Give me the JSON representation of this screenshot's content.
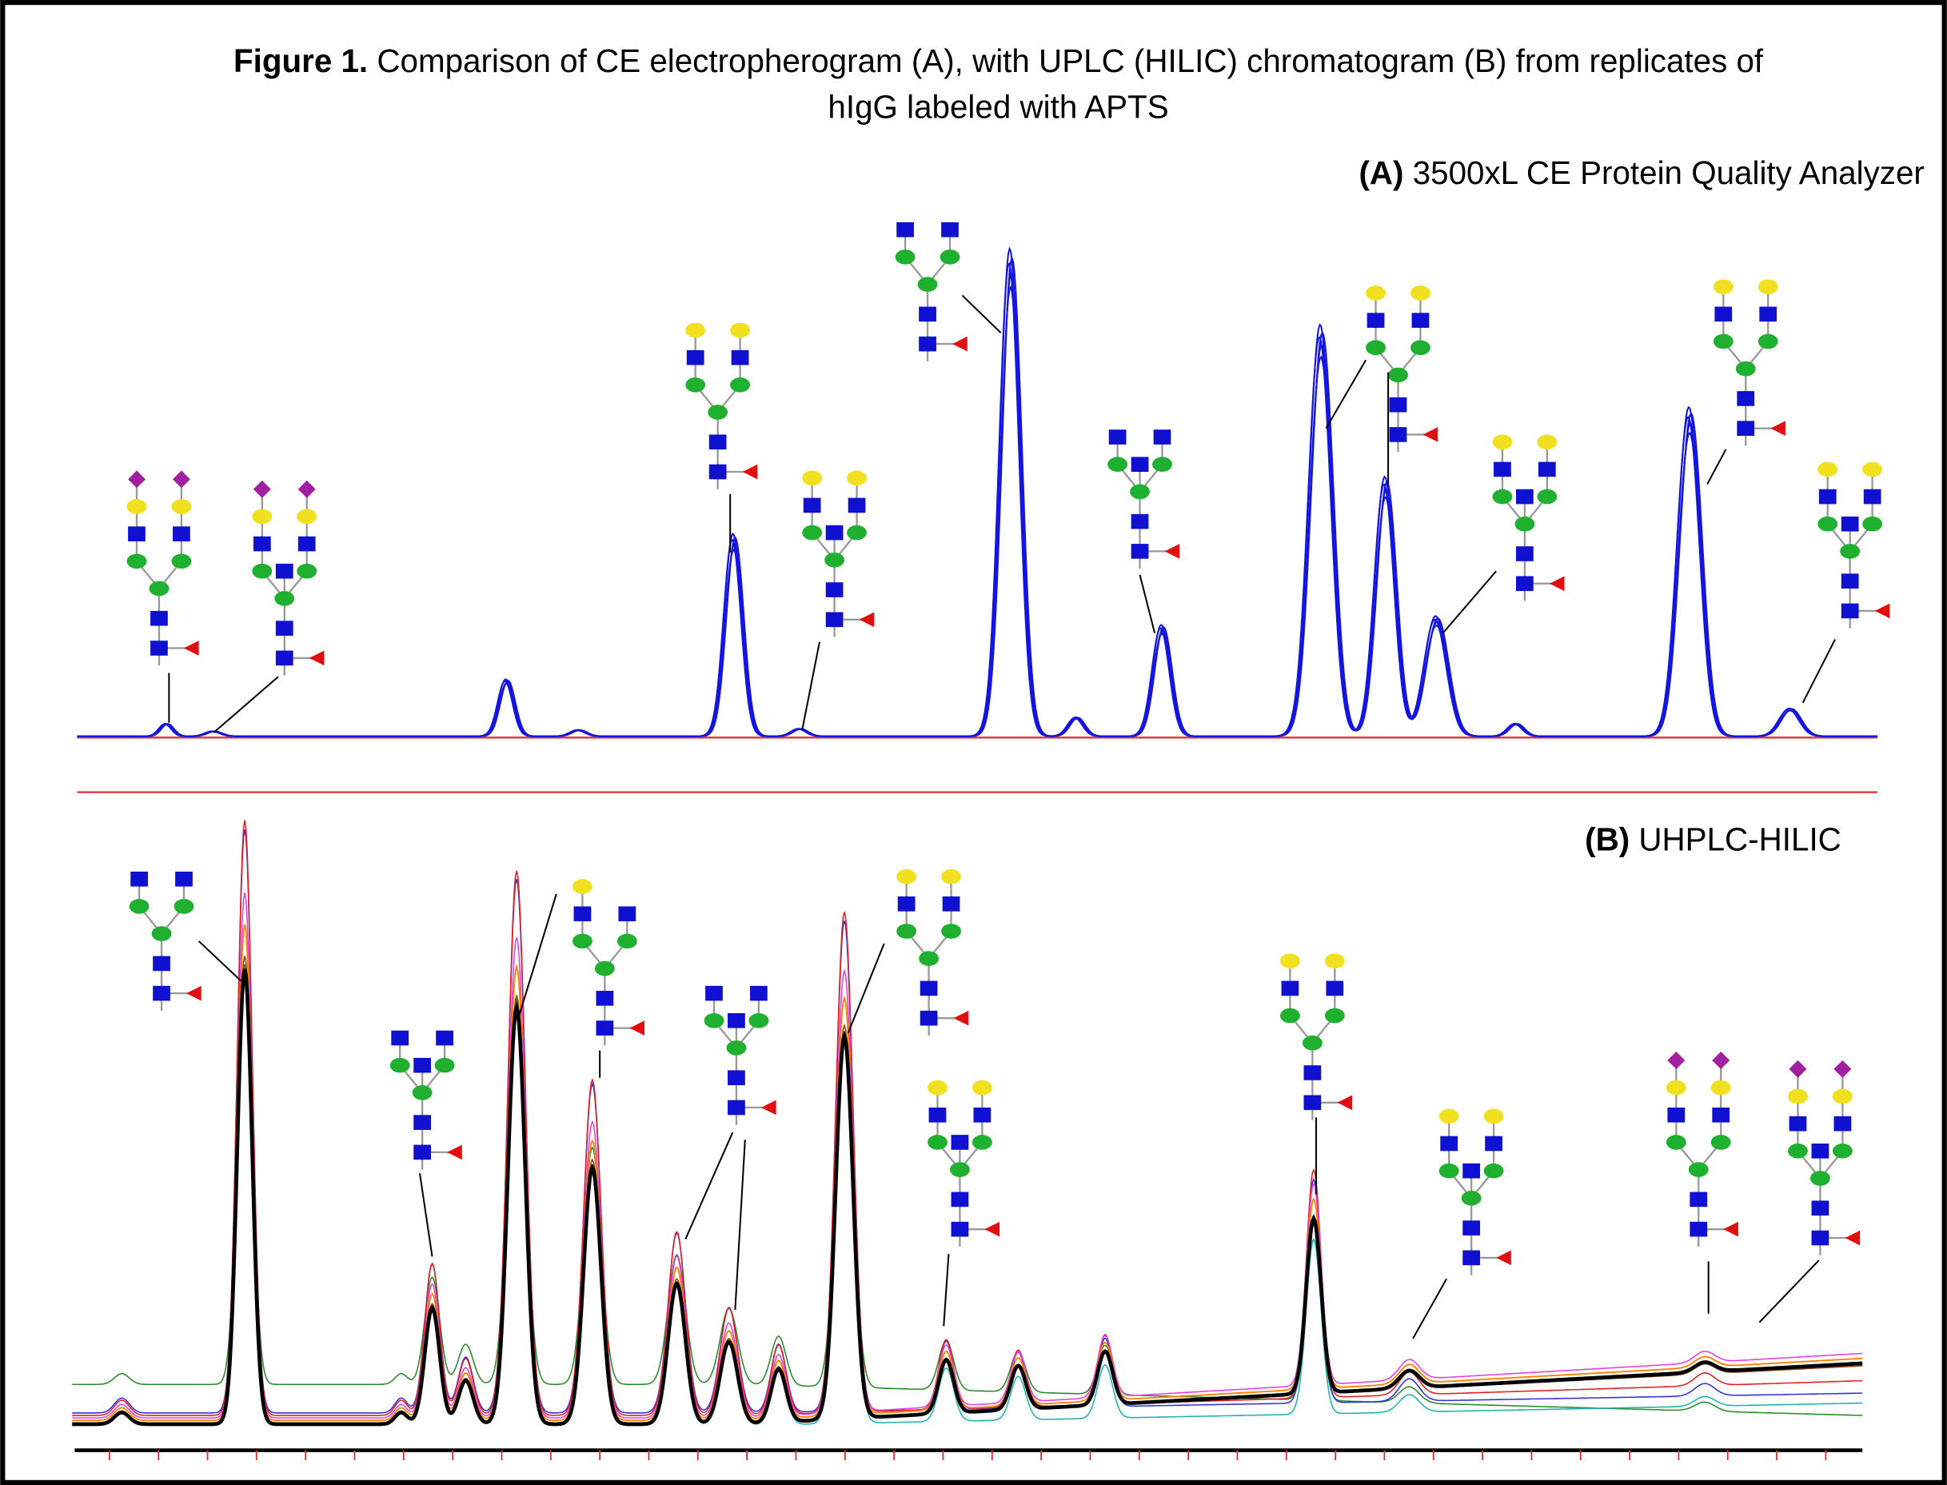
{
  "title": {
    "label": "Figure 1.",
    "lines": [
      "Comparison of CE electropherogram (A), with UPLC (HILIC) chromatogram  (B) from replicates of",
      "hIgG labeled with APTS"
    ]
  },
  "panels": [
    {
      "label": "(A)",
      "name": "3500xL CE Protein Quality Analyzer"
    },
    {
      "label": "(B)",
      "name": "UHPLC-HILIC"
    }
  ]
}
